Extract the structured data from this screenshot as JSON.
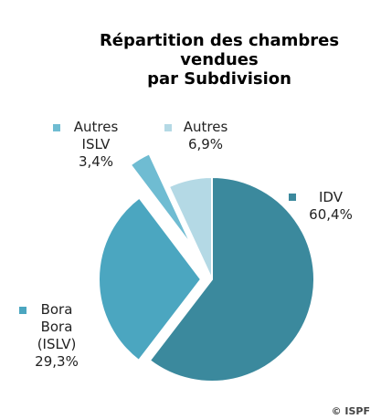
{
  "chart_data": {
    "type": "pie",
    "title": "Répartition des chambres\nvendues\npar Subdivision",
    "categories": [
      "IDV",
      "Bora\nBora\n(ISLV)",
      "Autres\nISLV",
      "Autres"
    ],
    "values": [
      60.4,
      29.3,
      3.4,
      6.9
    ],
    "value_labels": [
      "60,4%",
      "29,3%",
      "3,4%",
      "6,9%"
    ],
    "colors": [
      "#3b899d",
      "#4ba6c0",
      "#6fbcd2",
      "#b4d9e5"
    ],
    "source": "© ISPF"
  }
}
